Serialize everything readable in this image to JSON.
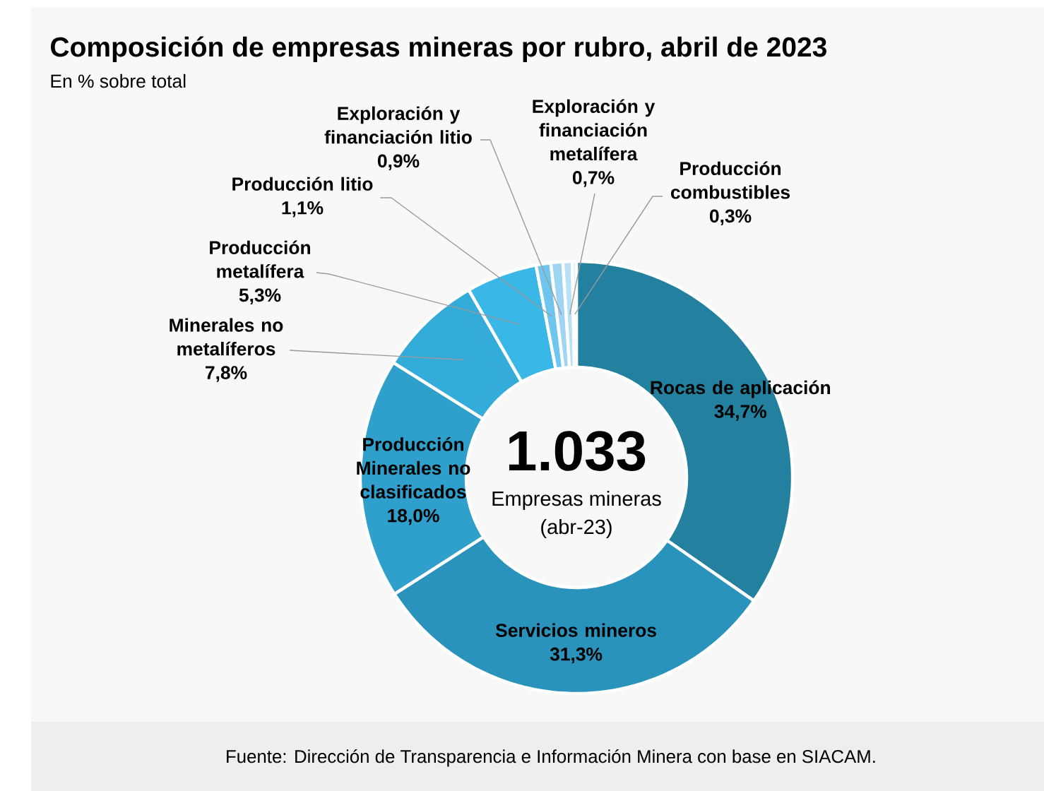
{
  "chart_data": {
    "type": "donut",
    "title": "Composición de empresas mineras por rubro, abril de 2023",
    "subtitle": "En % sobre total",
    "categories": [
      "Rocas de aplicación",
      "Servicios mineros",
      "Producción Minerales no clasificados",
      "Minerales no metalíferos",
      "Producción metalífera",
      "Producción litio",
      "Exploración y financiación litio",
      "Exploración y financiación metalífera",
      "Producción combustibles"
    ],
    "values": [
      34.7,
      31.3,
      18.0,
      7.8,
      5.3,
      1.1,
      0.9,
      0.7,
      0.3
    ],
    "value_labels": [
      "34,7%",
      "31,3%",
      "18,0%",
      "7,8%",
      "5,3%",
      "1,1%",
      "0,9%",
      "0,7%",
      "0,3%"
    ],
    "colors": [
      "#23809f",
      "#2a93bc",
      "#2f9fcb",
      "#34acd9",
      "#39b8e7",
      "#6ec6ee",
      "#9dd5f3",
      "#b9e1f6",
      "#cfeaf8"
    ],
    "annotations": [
      "1.033",
      "Empresas mineras",
      "(abr-23)",
      "Fuente: Dirección de Transparencia e Información Minera con base en SIACAM."
    ]
  }
}
